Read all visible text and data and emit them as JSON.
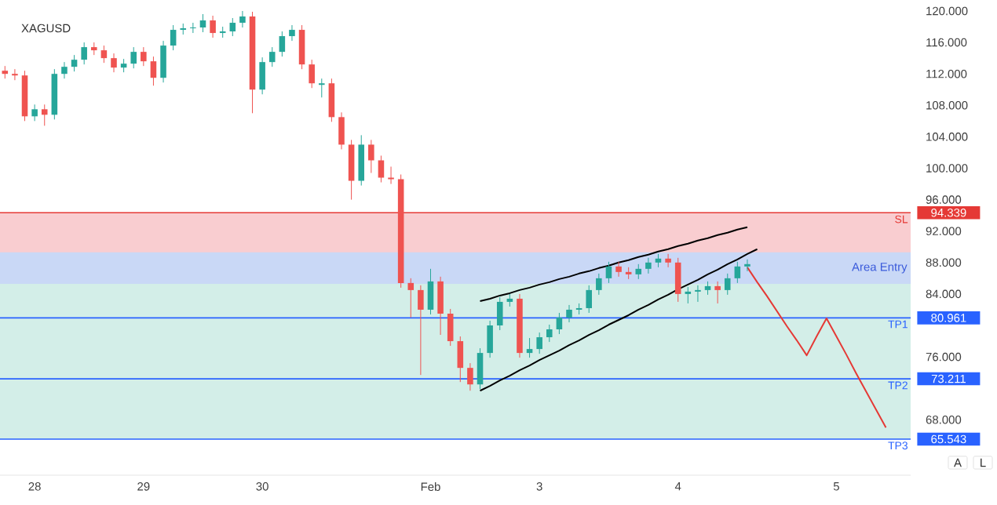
{
  "chart_data": {
    "type": "candlestick",
    "title": "XAGUSD",
    "categories": [
      null,
      null,
      null,
      "28",
      null,
      null,
      null,
      null,
      null,
      null,
      null,
      null,
      null,
      null,
      "29",
      null,
      null,
      null,
      null,
      null,
      null,
      null,
      null,
      null,
      null,
      null,
      "30",
      null,
      null,
      null,
      null,
      null,
      null,
      null,
      null,
      null,
      null,
      null,
      null,
      null,
      null,
      null,
      null,
      "Feb",
      null,
      null,
      null,
      null,
      null,
      null,
      null,
      null,
      null,
      null,
      "3",
      null,
      null,
      null,
      null,
      null,
      null,
      null,
      null,
      null,
      null,
      null,
      null,
      null,
      "4",
      null,
      null,
      null,
      null,
      null,
      null,
      null,
      null,
      null,
      null,
      null,
      null,
      null,
      null,
      null,
      "5",
      null,
      null,
      null,
      null,
      null,
      null,
      null
    ],
    "ohlc": [
      [
        112.4,
        113.0,
        111.4,
        112.0
      ],
      [
        112.0,
        112.6,
        111.2,
        111.8
      ],
      [
        111.8,
        112.4,
        106.0,
        106.6
      ],
      [
        106.6,
        108.1,
        106.0,
        107.5
      ],
      [
        107.5,
        108.1,
        105.4,
        106.8
      ],
      [
        106.8,
        112.6,
        106.2,
        112.0
      ],
      [
        112.0,
        113.5,
        111.4,
        112.9
      ],
      [
        112.9,
        114.4,
        112.3,
        113.8
      ],
      [
        113.8,
        116.0,
        113.2,
        115.4
      ],
      [
        115.4,
        116.0,
        114.4,
        115.0
      ],
      [
        115.0,
        115.6,
        113.4,
        114.0
      ],
      [
        114.0,
        114.6,
        112.2,
        112.8
      ],
      [
        112.8,
        113.9,
        112.2,
        113.3
      ],
      [
        113.3,
        115.4,
        112.7,
        114.8
      ],
      [
        114.8,
        115.4,
        113.0,
        113.6
      ],
      [
        113.6,
        114.2,
        110.5,
        111.5
      ],
      [
        111.5,
        116.2,
        110.9,
        115.6
      ],
      [
        115.6,
        118.2,
        115.0,
        117.6
      ],
      [
        117.6,
        118.4,
        117.0,
        117.8
      ],
      [
        117.8,
        118.5,
        117.2,
        117.9
      ],
      [
        117.9,
        119.6,
        117.3,
        118.8
      ],
      [
        118.8,
        119.4,
        116.6,
        117.2
      ],
      [
        117.2,
        118.0,
        116.6,
        117.4
      ],
      [
        117.4,
        119.1,
        116.8,
        118.5
      ],
      [
        118.5,
        120.0,
        117.9,
        119.3
      ],
      [
        119.3,
        119.9,
        107.0,
        110.0
      ],
      [
        110.0,
        114.1,
        109.4,
        113.5
      ],
      [
        113.5,
        115.4,
        112.9,
        114.8
      ],
      [
        114.8,
        117.4,
        114.2,
        116.8
      ],
      [
        116.8,
        118.2,
        116.2,
        117.6
      ],
      [
        117.6,
        118.2,
        112.6,
        113.2
      ],
      [
        113.2,
        113.8,
        110.2,
        110.8
      ],
      [
        110.6,
        111.4,
        109.0,
        110.8
      ],
      [
        110.8,
        111.4,
        105.9,
        106.5
      ],
      [
        106.5,
        107.1,
        102.4,
        103.0
      ],
      [
        103.0,
        103.6,
        96.0,
        98.4
      ],
      [
        98.4,
        104.2,
        97.8,
        103.0
      ],
      [
        103.0,
        103.6,
        99.4,
        101.0
      ],
      [
        101.0,
        101.6,
        98.2,
        98.8
      ],
      [
        98.8,
        100.2,
        98.0,
        98.6
      ],
      [
        98.6,
        99.2,
        84.8,
        85.4
      ],
      [
        85.4,
        86.0,
        81.0,
        84.5
      ],
      [
        84.5,
        85.1,
        73.7,
        82.0
      ],
      [
        82.0,
        87.2,
        81.4,
        85.6
      ],
      [
        85.6,
        86.2,
        78.8,
        81.5
      ],
      [
        81.5,
        82.1,
        77.4,
        78.0
      ],
      [
        78.0,
        78.6,
        72.8,
        74.6
      ],
      [
        74.6,
        75.2,
        71.7,
        72.5
      ],
      [
        72.5,
        77.1,
        71.9,
        76.5
      ],
      [
        76.5,
        80.6,
        75.9,
        80.0
      ],
      [
        80.0,
        83.6,
        79.4,
        83.0
      ],
      [
        83.0,
        84.0,
        82.4,
        83.4
      ],
      [
        83.4,
        84.0,
        75.9,
        76.5
      ],
      [
        76.5,
        78.4,
        75.9,
        77.0
      ],
      [
        77.0,
        79.1,
        76.4,
        78.5
      ],
      [
        78.5,
        80.1,
        77.9,
        79.5
      ],
      [
        79.5,
        81.6,
        78.9,
        81.0
      ],
      [
        81.0,
        82.6,
        80.4,
        82.0
      ],
      [
        82.0,
        82.8,
        81.4,
        82.2
      ],
      [
        82.2,
        85.1,
        81.6,
        84.5
      ],
      [
        84.5,
        86.6,
        83.9,
        86.0
      ],
      [
        86.0,
        88.1,
        85.4,
        87.5
      ],
      [
        87.5,
        88.1,
        86.2,
        86.8
      ],
      [
        86.8,
        87.4,
        85.9,
        86.5
      ],
      [
        86.5,
        87.8,
        85.9,
        87.2
      ],
      [
        87.2,
        88.6,
        86.6,
        88.0
      ],
      [
        88.0,
        89.1,
        87.4,
        88.5
      ],
      [
        88.5,
        89.1,
        87.4,
        88.0
      ],
      [
        88.0,
        88.6,
        83.0,
        84.0
      ],
      [
        84.0,
        84.9,
        82.8,
        84.3
      ],
      [
        84.3,
        85.1,
        83.0,
        84.5
      ],
      [
        84.5,
        85.6,
        83.9,
        85.0
      ],
      [
        85.0,
        85.6,
        82.8,
        84.5
      ],
      [
        84.5,
        86.6,
        83.9,
        86.0
      ],
      [
        86.0,
        88.1,
        85.4,
        87.5
      ],
      [
        87.5,
        88.4,
        86.9,
        87.8
      ],
      null,
      null,
      null,
      null,
      null,
      null,
      null,
      null,
      null,
      null,
      null,
      null,
      null,
      null,
      null,
      null
    ],
    "series": [
      {
        "type": "line",
        "color": "#000000",
        "values": [
          null,
          null,
          null,
          null,
          null,
          null,
          null,
          null,
          null,
          null,
          null,
          null,
          null,
          null,
          null,
          null,
          null,
          null,
          null,
          null,
          null,
          null,
          null,
          null,
          null,
          null,
          null,
          null,
          null,
          null,
          null,
          null,
          null,
          null,
          null,
          null,
          null,
          null,
          null,
          null,
          null,
          null,
          null,
          null,
          null,
          null,
          null,
          null,
          71.7,
          72.3,
          73.0,
          73.6,
          74.3,
          74.9,
          75.6,
          76.2,
          76.8,
          77.5,
          78.1,
          78.8,
          79.4,
          80.1,
          80.7,
          81.3,
          82.0,
          82.6,
          83.3,
          83.9,
          84.6,
          85.2,
          85.8,
          86.5,
          87.1,
          87.8,
          88.4,
          89.1,
          89.7,
          null,
          null,
          null,
          null,
          null,
          null,
          null,
          null,
          null,
          null,
          null,
          null,
          null,
          null,
          null
        ]
      },
      {
        "type": "line",
        "color": "#000000",
        "values": [
          null,
          null,
          null,
          null,
          null,
          null,
          null,
          null,
          null,
          null,
          null,
          null,
          null,
          null,
          null,
          null,
          null,
          null,
          null,
          null,
          null,
          null,
          null,
          null,
          null,
          null,
          null,
          null,
          null,
          null,
          null,
          null,
          null,
          null,
          null,
          null,
          null,
          null,
          null,
          null,
          null,
          null,
          null,
          null,
          null,
          null,
          null,
          null,
          83.1,
          83.4,
          83.8,
          84.1,
          84.5,
          84.8,
          85.2,
          85.5,
          85.9,
          86.2,
          86.6,
          86.9,
          87.3,
          87.6,
          88.0,
          88.3,
          88.7,
          89.0,
          89.4,
          89.7,
          90.1,
          90.4,
          90.8,
          91.1,
          91.5,
          91.8,
          92.2,
          92.5,
          null,
          null,
          null,
          null,
          null,
          null,
          null,
          null,
          null,
          null,
          null,
          null,
          null,
          null,
          null,
          null
        ]
      },
      {
        "type": "line",
        "color": "#e53935",
        "values": [
          null,
          null,
          null,
          null,
          null,
          null,
          null,
          null,
          null,
          null,
          null,
          null,
          null,
          null,
          null,
          null,
          null,
          null,
          null,
          null,
          null,
          null,
          null,
          null,
          null,
          null,
          null,
          null,
          null,
          null,
          null,
          null,
          null,
          null,
          null,
          null,
          null,
          null,
          null,
          null,
          null,
          null,
          null,
          null,
          null,
          null,
          null,
          null,
          null,
          null,
          null,
          null,
          null,
          null,
          null,
          null,
          null,
          null,
          null,
          null,
          null,
          null,
          null,
          null,
          null,
          null,
          null,
          null,
          null,
          null,
          null,
          null,
          null,
          null,
          null,
          87.4,
          85.5,
          83.7,
          81.8,
          79.9,
          78.1,
          76.2,
          78.6,
          80.9,
          78.6,
          76.3,
          73.9,
          71.6,
          69.3,
          67.0,
          null,
          null
        ]
      }
    ],
    "ylim": [
      60.95,
      120
    ],
    "yticks": [
      {
        "value": 68,
        "label": "68.000"
      },
      {
        "value": 76,
        "label": "76.000"
      },
      {
        "value": 84,
        "label": "84.000"
      },
      {
        "value": 88,
        "label": "88.000"
      },
      {
        "value": 92,
        "label": "92.000"
      },
      {
        "value": 96,
        "label": "96.000"
      },
      {
        "value": 100,
        "label": "100.000"
      },
      {
        "value": 104,
        "label": "104.000"
      },
      {
        "value": 108,
        "label": "108.000"
      },
      {
        "value": 112,
        "label": "112.000"
      },
      {
        "value": 116,
        "label": "116.000"
      },
      {
        "value": 120,
        "label": "120.000"
      }
    ],
    "bands": [
      {
        "axis": "y",
        "from": 87.3,
        "to": 94.339,
        "color": "#f9cdd0"
      },
      {
        "axis": "y",
        "from": 65.543,
        "to": 87.3,
        "color": "#d3eee8"
      },
      {
        "axis": "y",
        "from": 85.3,
        "to": 89.3,
        "label": "Area Entry",
        "color": "#c9d8f6"
      }
    ],
    "ref_lines": [
      {
        "axis": "y",
        "value": 94.339,
        "label": "SL",
        "color": "#e53935"
      },
      {
        "axis": "y",
        "value": 80.961,
        "label": "TP1",
        "color": "#2962ff"
      },
      {
        "axis": "y",
        "value": 73.211,
        "label": "TP2",
        "color": "#2962ff"
      },
      {
        "axis": "y",
        "value": 65.543,
        "label": "TP3",
        "color": "#2962ff"
      }
    ],
    "annotations": [
      "94.339",
      "80.961",
      "73.211",
      "65.543",
      "A",
      "L"
    ]
  }
}
